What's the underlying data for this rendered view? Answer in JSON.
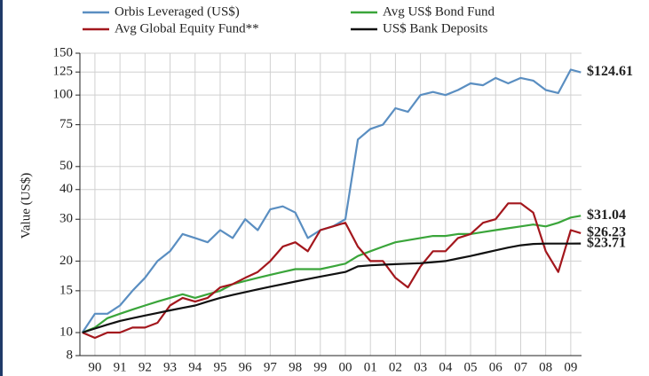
{
  "chart_data": {
    "type": "line",
    "y_label": "Value (US$)",
    "log_scale": true,
    "grid": true,
    "ylim": [
      8,
      150
    ],
    "yticks": [
      8,
      10,
      15,
      20,
      30,
      40,
      50,
      75,
      100,
      125,
      150
    ],
    "xlim": [
      1989.9,
      2009.93
    ],
    "xticks": [
      {
        "value": 1990.5,
        "label": "90"
      },
      {
        "value": 1991.5,
        "label": "91"
      },
      {
        "value": 1992.5,
        "label": "92"
      },
      {
        "value": 1993.5,
        "label": "93"
      },
      {
        "value": 1994.5,
        "label": "94"
      },
      {
        "value": 1995.5,
        "label": "95"
      },
      {
        "value": 1996.5,
        "label": "96"
      },
      {
        "value": 1997.5,
        "label": "97"
      },
      {
        "value": 1998.5,
        "label": "98"
      },
      {
        "value": 1999.5,
        "label": "99"
      },
      {
        "value": 2000.5,
        "label": "00"
      },
      {
        "value": 2001.5,
        "label": "01"
      },
      {
        "value": 2002.5,
        "label": "02"
      },
      {
        "value": 2003.5,
        "label": "03"
      },
      {
        "value": 2004.5,
        "label": "04"
      },
      {
        "value": 2005.5,
        "label": "05"
      },
      {
        "value": 2006.5,
        "label": "06"
      },
      {
        "value": 2007.5,
        "label": "07"
      },
      {
        "value": 2008.5,
        "label": "08"
      },
      {
        "value": 2009.5,
        "label": "09"
      }
    ],
    "x": [
      1990,
      1990.5,
      1991,
      1991.5,
      1992,
      1992.5,
      1993,
      1993.5,
      1994,
      1994.5,
      1995,
      1995.5,
      1996,
      1996.5,
      1997,
      1997.5,
      1998,
      1998.5,
      1999,
      1999.5,
      2000,
      2000.5,
      2001,
      2001.5,
      2002,
      2002.5,
      2003,
      2003.5,
      2004,
      2004.5,
      2005,
      2005.5,
      2006,
      2006.5,
      2007,
      2007.5,
      2008,
      2008.5,
      2009,
      2009.5,
      2009.9
    ],
    "series": [
      {
        "name": "Orbis Leveraged (US$)",
        "color": "#5a8ec1",
        "values": [
          10,
          12,
          12,
          13,
          15,
          17,
          20,
          22,
          26,
          25,
          24,
          27,
          25,
          30,
          27,
          33,
          34,
          32,
          25,
          27,
          28,
          30,
          65,
          72,
          75,
          88,
          85,
          100,
          103,
          100,
          105,
          112,
          110,
          118,
          112,
          118,
          115,
          105,
          102,
          128,
          124.61
        ],
        "value_labels": [
          null,
          null,
          null,
          null,
          null,
          null,
          null,
          null,
          null,
          null,
          null,
          null,
          null,
          null,
          null,
          null,
          null,
          null,
          null,
          null,
          null,
          null,
          null,
          null,
          null,
          null,
          null,
          null,
          null,
          null,
          null,
          null,
          null,
          null,
          null,
          null,
          null,
          null,
          null,
          null,
          "$124.61"
        ]
      },
      {
        "name": "Avg US$ Bond Fund",
        "color": "#3aa53a",
        "values": [
          10,
          10.5,
          11.5,
          12,
          12.5,
          13,
          13.5,
          14,
          14.5,
          14,
          14.5,
          15,
          16,
          16.5,
          17,
          17.5,
          18,
          18.5,
          18.5,
          18.5,
          19,
          19.5,
          21,
          22,
          23,
          24,
          24.5,
          25,
          25.5,
          25.5,
          26,
          26,
          26.5,
          27,
          27.5,
          28,
          28.5,
          28,
          29,
          30.5,
          31.04
        ],
        "value_labels": [
          null,
          null,
          null,
          null,
          null,
          null,
          null,
          null,
          null,
          null,
          null,
          null,
          null,
          null,
          null,
          null,
          null,
          null,
          null,
          null,
          null,
          null,
          null,
          null,
          null,
          null,
          null,
          null,
          null,
          null,
          null,
          null,
          null,
          null,
          null,
          null,
          null,
          null,
          null,
          null,
          "$31.04"
        ]
      },
      {
        "name": "Avg Global Equity Fund**",
        "color": "#a3171d",
        "values": [
          10,
          9.5,
          10,
          10,
          10.5,
          10.5,
          11,
          13,
          14,
          13.5,
          14,
          15.5,
          16,
          17,
          18,
          20,
          23,
          24,
          22,
          27,
          28,
          29,
          23,
          20,
          20,
          17,
          15.5,
          19,
          22,
          22,
          25,
          26,
          29,
          30,
          35,
          35,
          32,
          22,
          18,
          27,
          26.23
        ],
        "value_labels": [
          null,
          null,
          null,
          null,
          null,
          null,
          null,
          null,
          null,
          null,
          null,
          null,
          null,
          null,
          null,
          null,
          null,
          null,
          null,
          null,
          null,
          null,
          null,
          null,
          null,
          null,
          null,
          null,
          null,
          null,
          null,
          null,
          null,
          null,
          null,
          null,
          null,
          null,
          null,
          null,
          "$26.23"
        ]
      },
      {
        "name": "US$ Bank Deposits",
        "color": "#111111",
        "values": [
          10,
          10.4,
          10.8,
          11.2,
          11.5,
          11.8,
          12.1,
          12.4,
          12.7,
          13,
          13.5,
          14,
          14.4,
          14.8,
          15.2,
          15.6,
          16,
          16.4,
          16.8,
          17.2,
          17.6,
          18,
          19,
          19.2,
          19.3,
          19.4,
          19.5,
          19.6,
          19.8,
          20,
          20.5,
          21,
          21.6,
          22.2,
          22.8,
          23.3,
          23.6,
          23.7,
          23.7,
          23.7,
          23.71
        ],
        "value_labels": [
          null,
          null,
          null,
          null,
          null,
          null,
          null,
          null,
          null,
          null,
          null,
          null,
          null,
          null,
          null,
          null,
          null,
          null,
          null,
          null,
          null,
          null,
          null,
          null,
          null,
          null,
          null,
          null,
          null,
          null,
          null,
          null,
          null,
          null,
          null,
          null,
          null,
          null,
          null,
          null,
          "$23.71"
        ]
      }
    ]
  }
}
